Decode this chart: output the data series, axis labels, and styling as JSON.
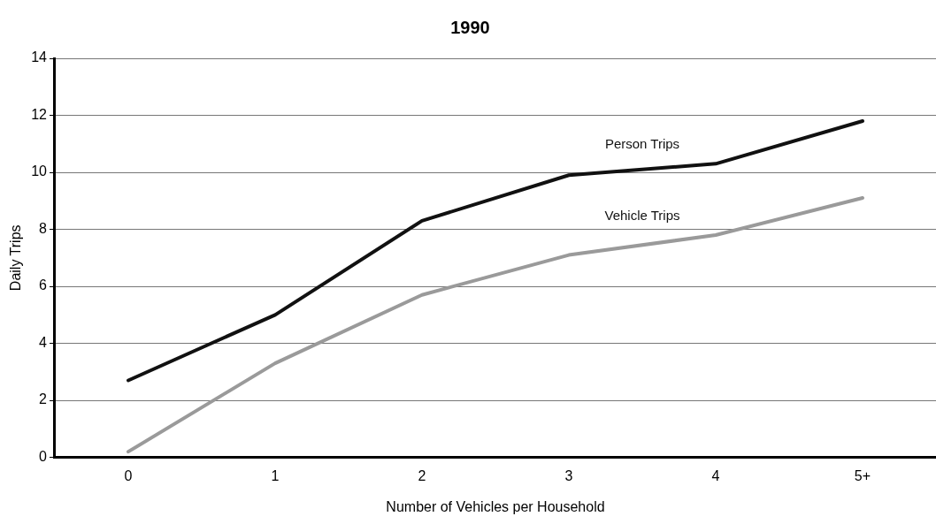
{
  "chart_data": {
    "type": "line",
    "title": "1990",
    "xlabel": "Number of Vehicles per Household",
    "ylabel": "Daily Trips",
    "categories": [
      "0",
      "1",
      "2",
      "3",
      "4",
      "5+"
    ],
    "series": [
      {
        "name": "Person Trips",
        "color": "#111111",
        "values": [
          2.7,
          5.0,
          8.3,
          9.9,
          10.3,
          11.8
        ]
      },
      {
        "name": "Vehicle Trips",
        "color": "#9a9a9a",
        "values": [
          0.2,
          3.3,
          5.7,
          7.1,
          7.8,
          9.1
        ]
      }
    ],
    "ylim": [
      0,
      14
    ],
    "yticks": [
      0,
      2,
      4,
      6,
      8,
      10,
      12,
      14
    ],
    "grid": "y",
    "legend": false,
    "marker": "none",
    "line_style": "solid"
  }
}
